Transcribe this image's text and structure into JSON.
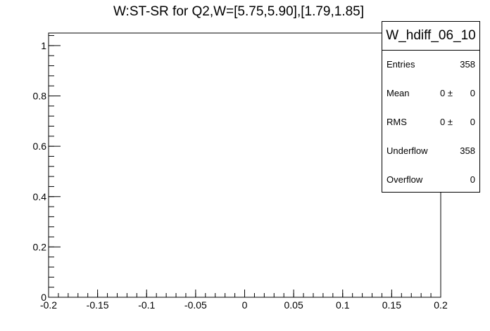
{
  "chart_data": {
    "type": "bar",
    "title": "W:ST-SR for Q2,W=[5.75,5.90],[1.79,1.85]",
    "xlabel": "",
    "ylabel": "",
    "xlim": [
      -0.2,
      0.2
    ],
    "ylim": [
      0,
      1.05
    ],
    "x_ticks": [
      "-0.2",
      "-0.15",
      "-0.1",
      "-0.05",
      "0",
      "0.05",
      "0.1",
      "0.15",
      "0.2"
    ],
    "x_tick_values": [
      -0.2,
      -0.15,
      -0.1,
      -0.05,
      0,
      0.05,
      0.1,
      0.15,
      0.2
    ],
    "y_ticks": [
      "0",
      "0.2",
      "0.4",
      "0.6",
      "0.8",
      "1"
    ],
    "y_tick_values": [
      0,
      0.2,
      0.4,
      0.6,
      0.8,
      1
    ],
    "values": [],
    "grid": false
  },
  "stats_box": {
    "name": "W_hdiff_06_10",
    "entries_label": "Entries",
    "entries": "358",
    "mean_label": "Mean",
    "mean_value": "0",
    "mean_pm": "0 ±",
    "rms_label": "RMS",
    "rms_value": "0",
    "rms_pm": "0 ±",
    "underflow_label": "Underflow",
    "underflow": "358",
    "overflow_label": "Overflow",
    "overflow": "0"
  }
}
